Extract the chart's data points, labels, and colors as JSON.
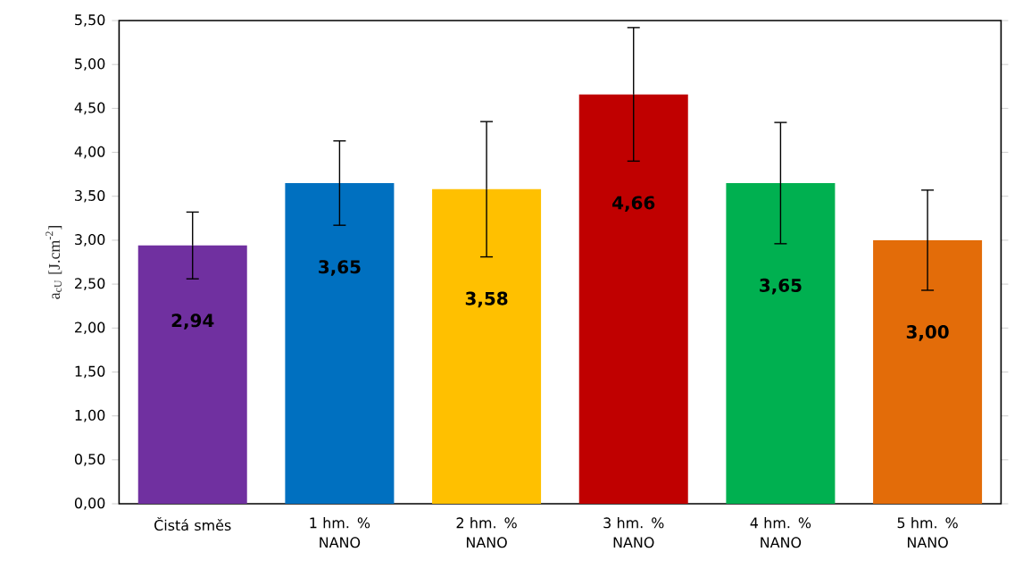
{
  "chart_data": {
    "type": "bar",
    "ylabel": "a$_{cU}$ [J.cm$^{-2}$]",
    "categories": [
      "Čistá směs",
      "1 hm. % NANO",
      "2 hm. % NANO",
      "3 hm. % NANO",
      "4 hm. % NANO",
      "5 hm. % NANO"
    ],
    "values": [
      2.94,
      3.65,
      3.58,
      4.66,
      3.65,
      3.0
    ],
    "colors": [
      "#7030a0",
      "#0070c0",
      "#ffc000",
      "#c00000",
      "#00b050",
      "#e36c09"
    ],
    "errors": [
      0.38,
      0.48,
      0.77,
      0.76,
      0.69,
      0.57
    ],
    "value_labels": [
      "2,94",
      "3,65",
      "3,58",
      "4,66",
      "3,65",
      "3,00"
    ],
    "ylim": [
      0,
      5.5
    ],
    "yticks": [
      {
        "value": 0,
        "label": "0,00"
      },
      {
        "value": 0.5,
        "label": "0,50"
      },
      {
        "value": 1,
        "label": "1,00"
      },
      {
        "value": 1.5,
        "label": "1,50"
      },
      {
        "value": 2,
        "label": "2,00"
      },
      {
        "value": 2.5,
        "label": "2,50"
      },
      {
        "value": 3,
        "label": "3,00"
      },
      {
        "value": 3.5,
        "label": "3,50"
      },
      {
        "value": 4,
        "label": "4,00"
      },
      {
        "value": 4.5,
        "label": "4,50"
      },
      {
        "value": 5,
        "label": "5,00"
      },
      {
        "value": 5.5,
        "label": "5,50"
      }
    ],
    "grid": false
  }
}
